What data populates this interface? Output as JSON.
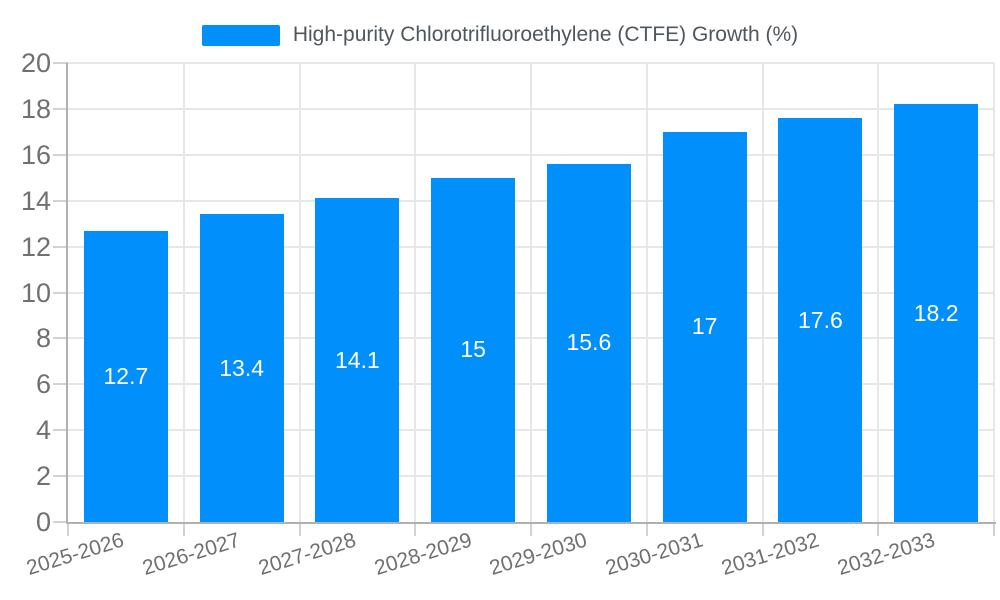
{
  "chart_data": {
    "type": "bar",
    "title": "High-purity Chlorotrifluoroethylene (CTFE) Growth (%)",
    "legend_entries": [
      "High-purity Chlorotrifluoroethylene (CTFE) Growth (%)"
    ],
    "legend_position": "top",
    "categories": [
      "2025-2026",
      "2026-2027",
      "2027-2028",
      "2028-2029",
      "2029-2030",
      "2030-2031",
      "2031-2032",
      "2032-2033"
    ],
    "values": [
      12.7,
      13.4,
      14.1,
      15,
      15.6,
      17,
      17.6,
      18.2
    ],
    "bar_value_labels": [
      "12.7",
      "13.4",
      "14.1",
      "15",
      "15.6",
      "17",
      "17.6",
      "18.2"
    ],
    "xlabel": "",
    "ylabel": "",
    "ylim": [
      0,
      20
    ],
    "ytick_step": 2,
    "ytick_labels": [
      "0",
      "2",
      "4",
      "6",
      "8",
      "10",
      "12",
      "14",
      "16",
      "18",
      "20"
    ],
    "grid": true,
    "x_label_rotation_deg": -17,
    "colors": {
      "bar": "#008FFB",
      "grid": "#e7e7e7",
      "axis": "#b0b0b0",
      "tick": "#d2d2d2",
      "axis_label": "#707070",
      "title": "#50575c",
      "value_label": "#ffffff"
    }
  }
}
